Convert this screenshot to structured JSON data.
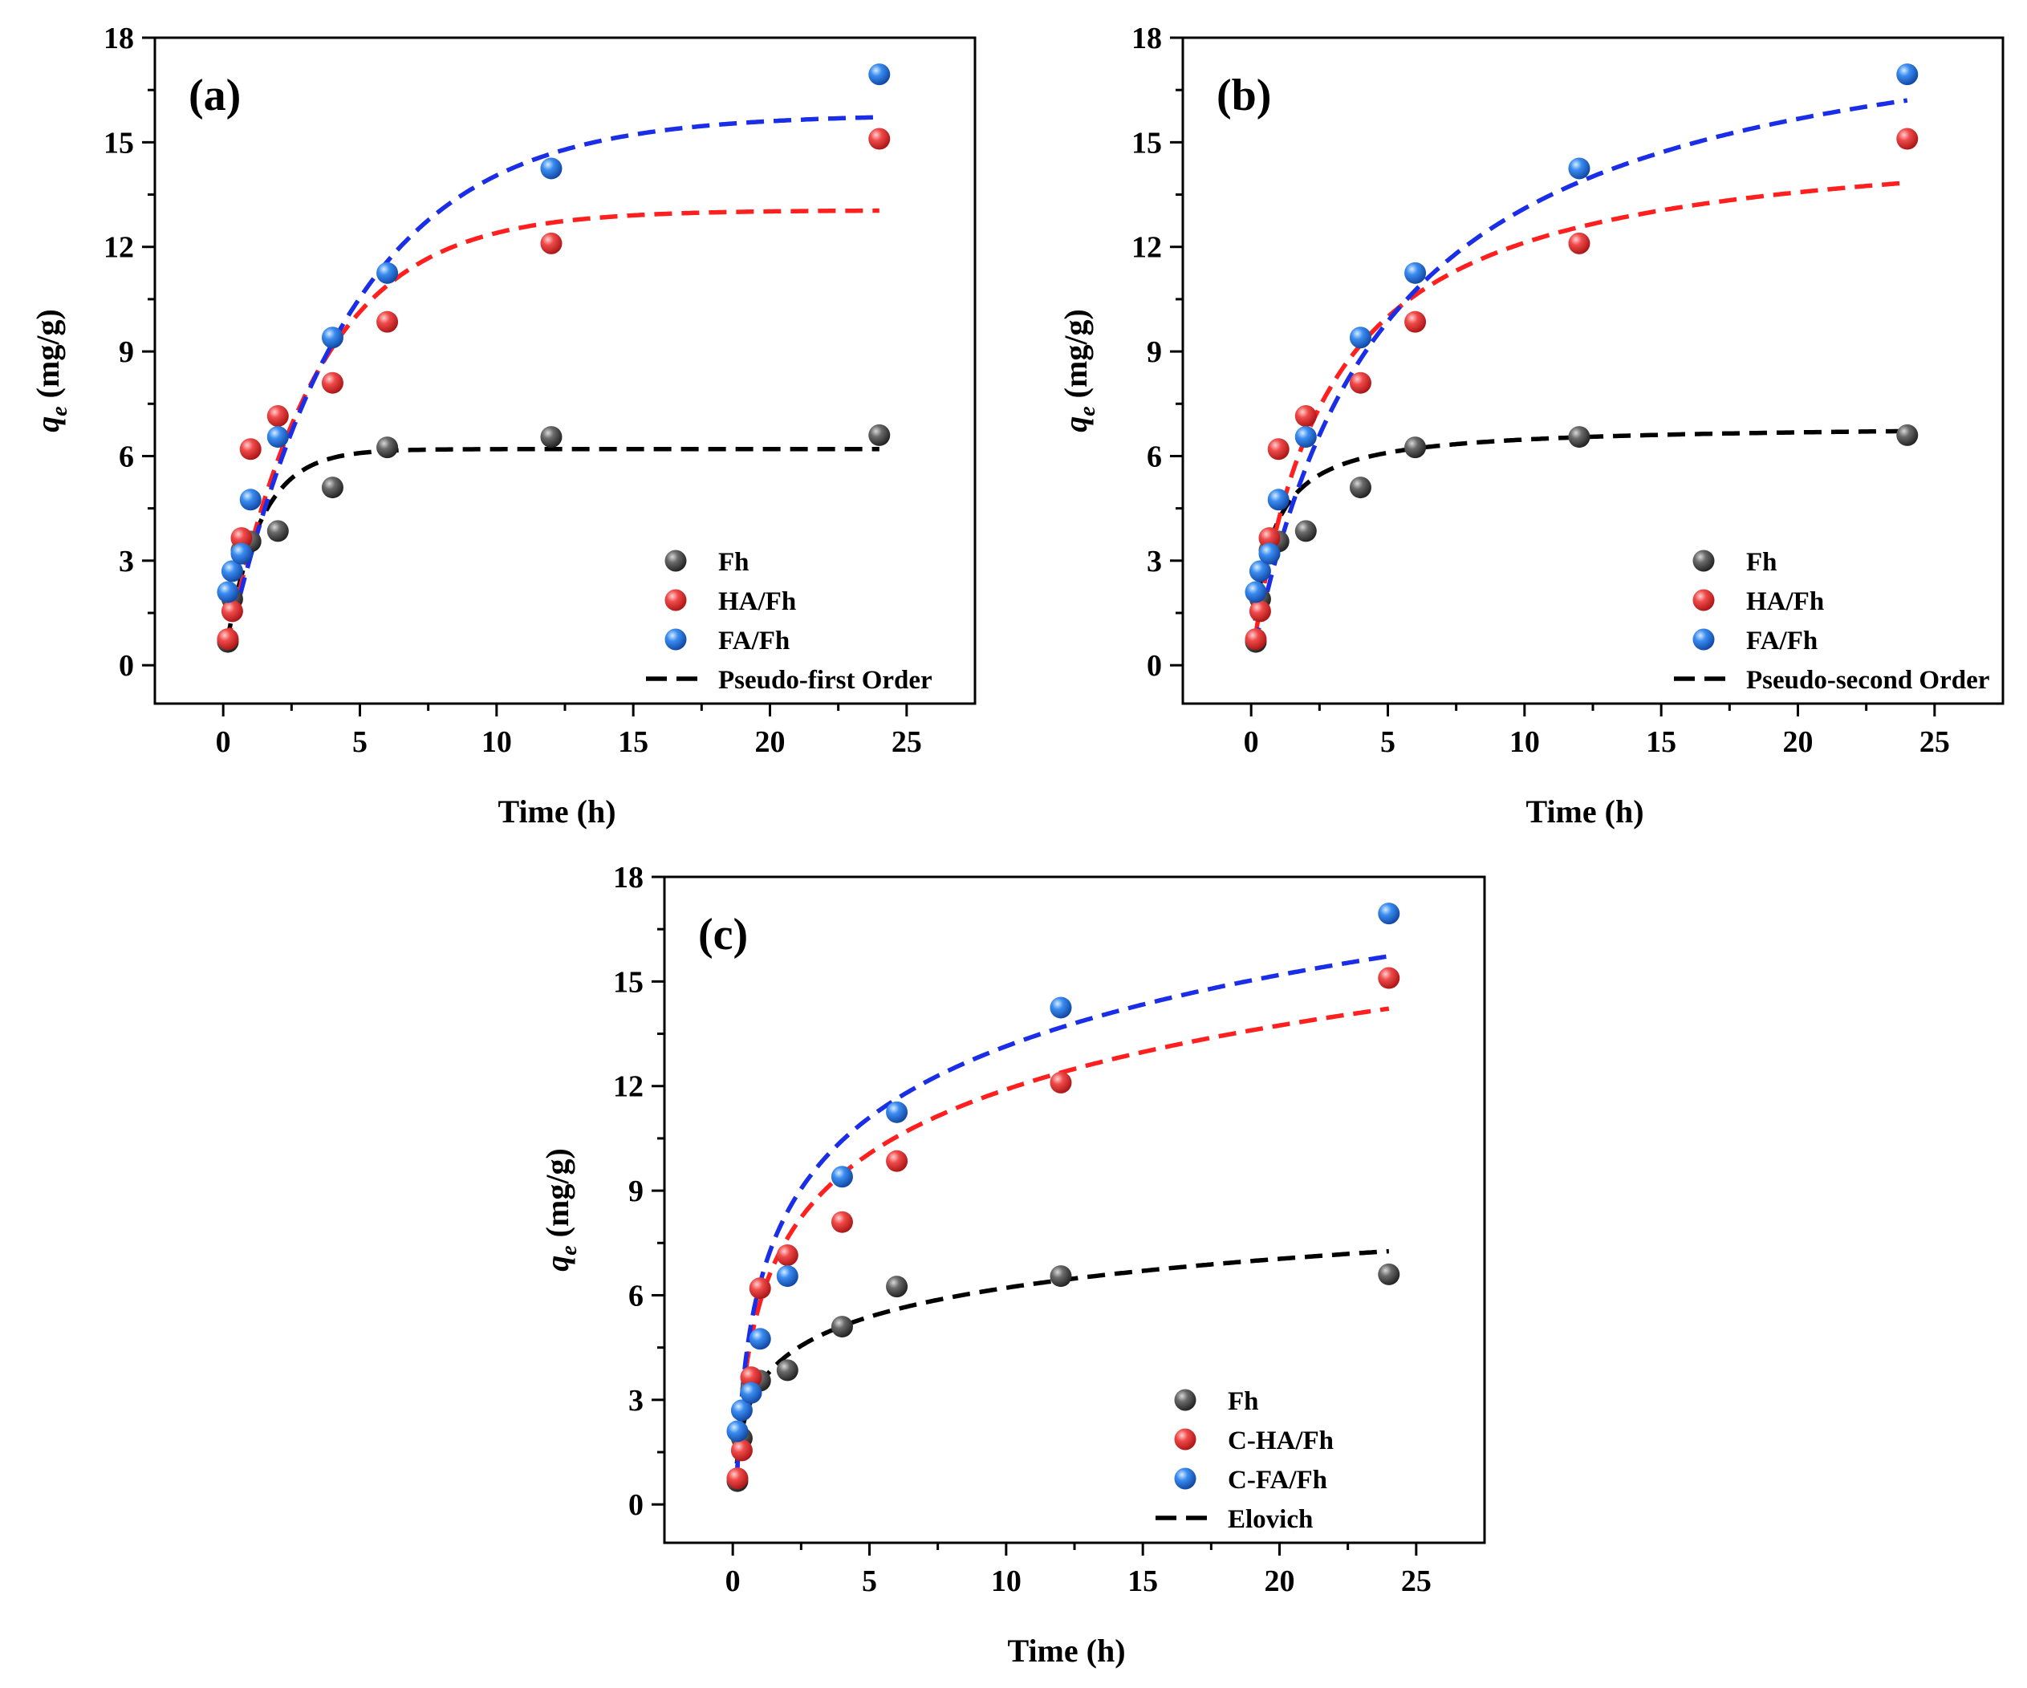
{
  "chart_data": [
    {
      "type": "scatter",
      "panel_label": "(a)",
      "xlabel": "Time (h)",
      "ylabel_main": "q",
      "ylabel_sub": "e",
      "ylabel_unit": " (mg/g)",
      "xlim": [
        -2.5,
        27.5
      ],
      "ylim": [
        -1.1,
        18
      ],
      "xticks": [
        0,
        5,
        10,
        15,
        20,
        25
      ],
      "yticks": [
        0,
        3,
        6,
        9,
        12,
        15,
        18
      ],
      "legend_position": "bottom-right",
      "fit_label": "Pseudo-first Order",
      "fit_model": "pfo",
      "series": [
        {
          "name": "Fh",
          "color": "#4a4a4a",
          "x": [
            0.17,
            0.33,
            0.67,
            1,
            2,
            4,
            6,
            12,
            24
          ],
          "y": [
            0.67,
            1.9,
            3.3,
            3.55,
            3.85,
            5.1,
            6.25,
            6.55,
            6.6
          ],
          "fit": {
            "qe": 6.2,
            "k": 0.8
          }
        },
        {
          "name": "HA/Fh",
          "color": "#e83a3a",
          "x": [
            0.17,
            0.33,
            0.67,
            1,
            2,
            4,
            6,
            12,
            24
          ],
          "y": [
            0.75,
            1.55,
            3.65,
            6.2,
            7.15,
            8.1,
            9.85,
            12.1,
            15.1
          ],
          "fit": {
            "qe": 13.05,
            "k": 0.3
          }
        },
        {
          "name": "FA/Fh",
          "color": "#2f7de0",
          "x": [
            0.17,
            0.33,
            0.67,
            1,
            2,
            4,
            6,
            12,
            24
          ],
          "y": [
            2.1,
            2.7,
            3.2,
            4.75,
            6.55,
            9.4,
            11.25,
            14.25,
            16.95
          ],
          "fit": {
            "qe": 15.8,
            "k": 0.22
          }
        }
      ]
    },
    {
      "type": "scatter",
      "panel_label": "(b)",
      "xlabel": "Time (h)",
      "ylabel_main": "q",
      "ylabel_sub": "e",
      "ylabel_unit": " (mg/g)",
      "xlim": [
        -2.5,
        27.5
      ],
      "ylim": [
        -1.1,
        18
      ],
      "xticks": [
        0,
        5,
        10,
        15,
        20,
        25
      ],
      "yticks": [
        0,
        3,
        6,
        9,
        12,
        15,
        18
      ],
      "legend_position": "bottom-right",
      "fit_label": "Pseudo-second Order",
      "fit_model": "pso",
      "series": [
        {
          "name": "Fh",
          "color": "#4a4a4a",
          "x": [
            0.17,
            0.33,
            0.67,
            1,
            2,
            4,
            6,
            12,
            24
          ],
          "y": [
            0.67,
            1.9,
            3.3,
            3.55,
            3.85,
            5.1,
            6.25,
            6.55,
            6.6
          ],
          "fit": {
            "qe": 6.9,
            "k": 0.22
          }
        },
        {
          "name": "HA/Fh",
          "color": "#e83a3a",
          "x": [
            0.17,
            0.33,
            0.67,
            1,
            2,
            4,
            6,
            12,
            24
          ],
          "y": [
            0.75,
            1.55,
            3.65,
            6.2,
            7.15,
            8.1,
            9.85,
            12.1,
            15.1
          ],
          "fit": {
            "qe": 15.4,
            "k": 0.024
          }
        },
        {
          "name": "FA/Fh",
          "color": "#2f7de0",
          "x": [
            0.17,
            0.33,
            0.67,
            1,
            2,
            4,
            6,
            12,
            24
          ],
          "y": [
            2.1,
            2.7,
            3.2,
            4.75,
            6.55,
            9.4,
            11.25,
            14.25,
            16.95
          ],
          "fit": {
            "qe": 19.5,
            "k": 0.0105
          }
        }
      ]
    },
    {
      "type": "scatter",
      "panel_label": "(c)",
      "xlabel": "Time (h)",
      "ylabel_main": "q",
      "ylabel_sub": "e",
      "ylabel_unit": " (mg/g)",
      "xlim": [
        -2.5,
        27.5
      ],
      "ylim": [
        -1.1,
        18
      ],
      "xticks": [
        0,
        5,
        10,
        15,
        20,
        25
      ],
      "yticks": [
        0,
        3,
        6,
        9,
        12,
        15,
        18
      ],
      "legend_position": "bottom-right",
      "fit_label": "Elovich",
      "fit_model": "elovich",
      "series": [
        {
          "name": "Fh",
          "color": "#4a4a4a",
          "x": [
            0.17,
            0.33,
            0.67,
            1,
            2,
            4,
            6,
            12,
            24
          ],
          "y": [
            0.67,
            1.9,
            3.3,
            3.55,
            3.85,
            5.1,
            6.25,
            6.55,
            6.6
          ],
          "fit": {
            "a": 3.45,
            "b": 1.2
          }
        },
        {
          "name": "C-HA/Fh",
          "color": "#e83a3a",
          "x": [
            0.17,
            0.33,
            0.67,
            1,
            2,
            4,
            6,
            12,
            24
          ],
          "y": [
            0.75,
            1.55,
            3.65,
            6.2,
            7.15,
            8.1,
            9.85,
            12.1,
            15.1
          ],
          "fit": {
            "a": 5.8,
            "b": 2.65
          }
        },
        {
          "name": "C-FA/Fh",
          "color": "#2f7de0",
          "x": [
            0.17,
            0.33,
            0.67,
            1,
            2,
            4,
            6,
            12,
            24
          ],
          "y": [
            2.1,
            2.7,
            3.2,
            4.75,
            6.55,
            9.4,
            11.25,
            14.25,
            16.95
          ],
          "fit": {
            "a": 6.35,
            "b": 2.95
          }
        }
      ]
    }
  ]
}
